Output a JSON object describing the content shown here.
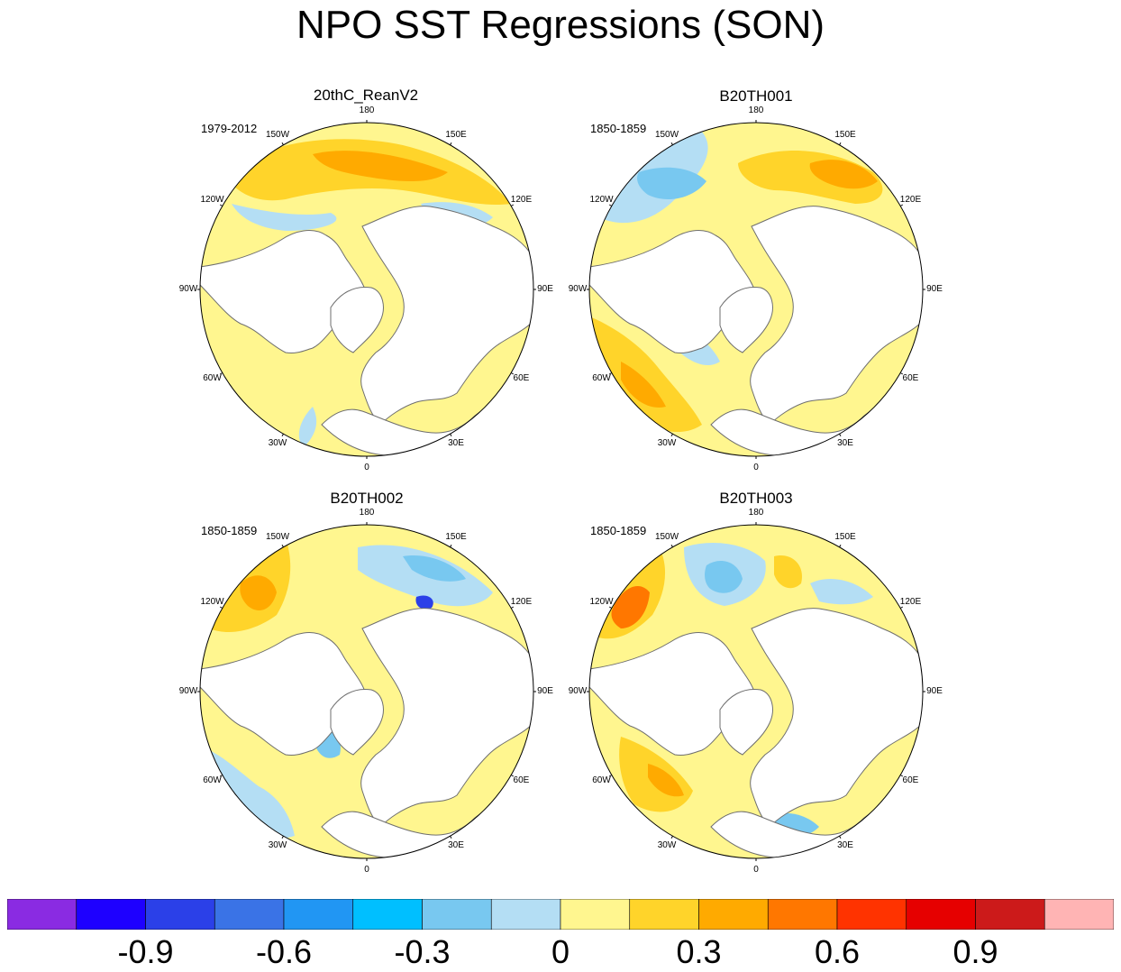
{
  "figure": {
    "title": "NPO SST Regressions (SON)"
  },
  "panels": [
    {
      "title": "20thC_ReanV2",
      "period": "1979-2012"
    },
    {
      "title": "B20TH001",
      "period": "1850-1859"
    },
    {
      "title": "B20TH002",
      "period": "1850-1859"
    },
    {
      "title": "B20TH003",
      "period": "1850-1859"
    }
  ],
  "longitude_labels": {
    "top": "180",
    "top_left": "150W",
    "top_right": "150E",
    "upper_left": "120W",
    "upper_right": "120E",
    "left": "90W",
    "right": "90E",
    "lower_left": "60W",
    "lower_right": "60E",
    "bottom_left": "30W",
    "bottom_right": "30E",
    "bottom": "0"
  },
  "colorbar": {
    "labels": [
      "-0.9",
      "-0.6",
      "-0.3",
      "0",
      "0.3",
      "0.6",
      "0.9"
    ],
    "colors": [
      "#8a2be2",
      "#1e00ff",
      "#2b40e8",
      "#3a73e6",
      "#2196f3",
      "#00bfff",
      "#78c8f0",
      "#b4def4",
      "#fff68f",
      "#ffd42a",
      "#ffaa00",
      "#ff7700",
      "#ff3300",
      "#e60000",
      "#cc1a1a",
      "#ffb4b4"
    ]
  },
  "colors": {
    "land": "#ffffff",
    "coast": "#6e6e6e",
    "neutral_pos": "#fff68f",
    "neutral_neg": "#b4def4",
    "pos1": "#ffd42a",
    "pos2": "#ffaa00",
    "pos3": "#ff7700",
    "neg1": "#78c8f0",
    "neg2": "#00bfff",
    "neg3": "#2b40e8",
    "neg4": "#8a2be2"
  }
}
